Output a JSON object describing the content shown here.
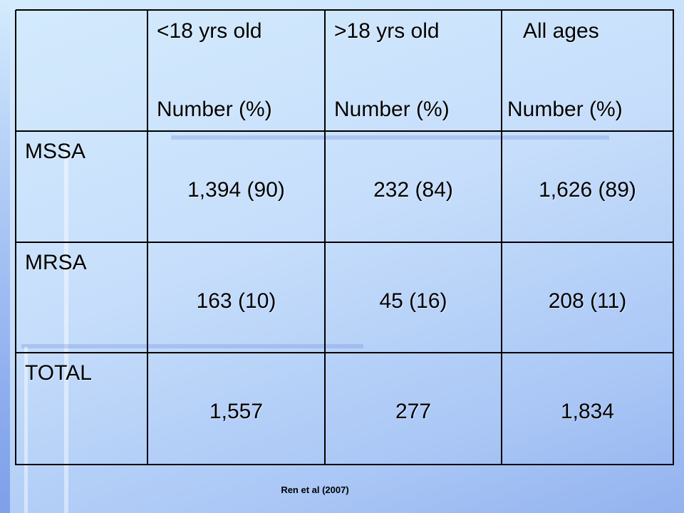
{
  "table": {
    "columns": [
      {
        "label": "<18 yrs old",
        "unit": "Number (%)"
      },
      {
        "label": ">18 yrs old",
        "unit": "Number (%)"
      },
      {
        "label": "All ages",
        "unit": "Number (%)"
      }
    ],
    "rows": [
      {
        "label": "MSSA",
        "cells": [
          "1,394 (90)",
          "232 (84)",
          "1,626 (89)"
        ]
      },
      {
        "label": "MRSA",
        "cells": [
          "163 (10)",
          "45 (16)",
          "208 (11)"
        ]
      },
      {
        "label": "TOTAL",
        "cells": [
          "1,557",
          "277",
          "1,834"
        ]
      }
    ]
  },
  "citation": "Ren et al (2007)"
}
